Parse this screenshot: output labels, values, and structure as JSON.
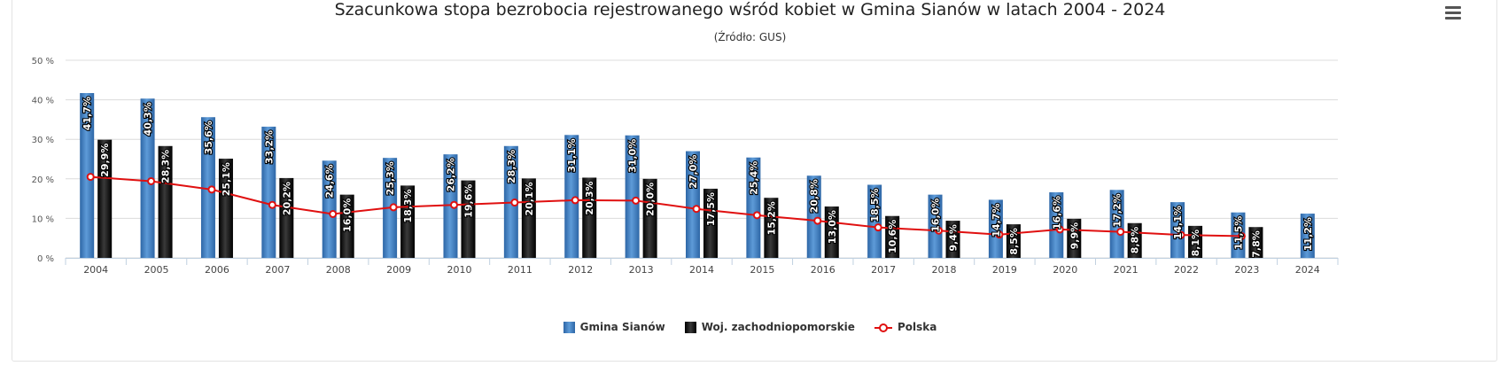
{
  "header": {
    "title": "Szacunkowa stopa bezrobocia rejestrowanego wśród kobiet w Gmina Sianów w latach 2004 - 2024",
    "subtitle": "(Źródło: GUS)",
    "menu_icon": "hamburger-menu-icon"
  },
  "colors": {
    "gmina": "#3a7bc0",
    "woj": "#1c1c1c",
    "polska": "#e01010",
    "grid": "#dcdcdc"
  },
  "chart_data": {
    "type": "bar",
    "categories": [
      "2004",
      "2005",
      "2006",
      "2007",
      "2008",
      "2009",
      "2010",
      "2011",
      "2012",
      "2013",
      "2014",
      "2015",
      "2016",
      "2017",
      "2018",
      "2019",
      "2020",
      "2021",
      "2022",
      "2023",
      "2024"
    ],
    "series": [
      {
        "name": "Gmina Sianów",
        "type": "bar",
        "values": [
          41.7,
          40.3,
          35.6,
          33.2,
          24.6,
          25.3,
          26.2,
          28.3,
          31.1,
          31.0,
          27.0,
          25.4,
          20.8,
          18.5,
          16.0,
          14.7,
          16.6,
          17.2,
          14.1,
          11.5,
          11.2
        ],
        "labels": [
          "41,7%",
          "40,3%",
          "35,6%",
          "33,2%",
          "24,6%",
          "25,3%",
          "26,2%",
          "28,3%",
          "31,1%",
          "31,0%",
          "27,0%",
          "25,4%",
          "20,8%",
          "18,5%",
          "16,0%",
          "14,7%",
          "16,6%",
          "17,2%",
          "14,1%",
          "11,5%",
          "11,2%"
        ]
      },
      {
        "name": "Woj. zachodniopomorskie",
        "type": "bar",
        "values": [
          29.9,
          28.3,
          25.1,
          20.2,
          16.0,
          18.3,
          19.6,
          20.1,
          20.3,
          20.0,
          17.5,
          15.2,
          13.0,
          10.6,
          9.4,
          8.5,
          9.9,
          8.8,
          8.1,
          7.8,
          null
        ],
        "labels": [
          "29,9%",
          "28,3%",
          "25,1%",
          "20,2%",
          "16,0%",
          "18,3%",
          "19,6%",
          "20,1%",
          "20,3%",
          "20,0%",
          "17,5%",
          "15,2%",
          "13,0%",
          "10,6%",
          "9,4%",
          "8,5%",
          "9,9%",
          "8,8%",
          "8,1%",
          "7,8%",
          ""
        ]
      },
      {
        "name": "Polska",
        "type": "line",
        "values": [
          20.5,
          19.4,
          17.3,
          13.4,
          11.1,
          12.8,
          13.4,
          14.0,
          14.6,
          14.5,
          12.4,
          10.8,
          9.4,
          7.7,
          6.9,
          5.9,
          7.2,
          6.6,
          5.8,
          5.5,
          null
        ]
      }
    ],
    "yticks": [
      "0 %",
      "10 %",
      "20 %",
      "30 %",
      "40 %",
      "50 %"
    ],
    "ylim": [
      0,
      50
    ],
    "grid": true,
    "legend_position": "bottom-center"
  }
}
